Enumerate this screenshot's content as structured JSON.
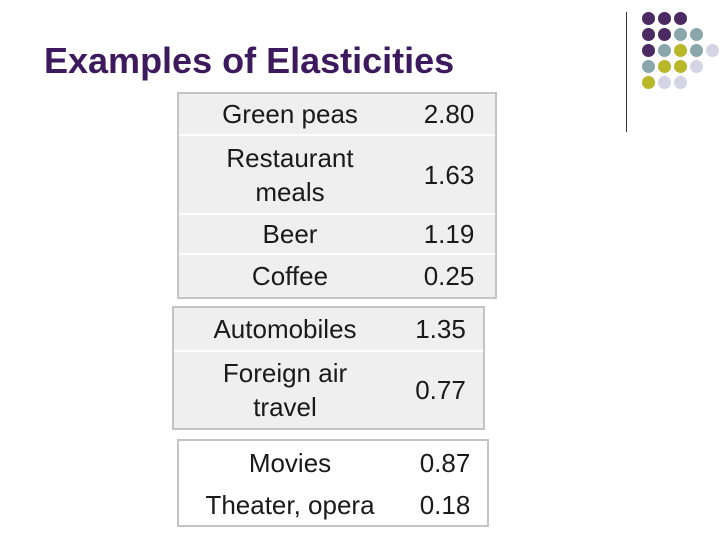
{
  "title": "Examples of Elasticities",
  "groups": [
    {
      "rows": [
        {
          "name": "Green peas",
          "value": "2.80"
        },
        {
          "name": "Restaurant meals",
          "value": "1.63"
        },
        {
          "name": "Beer",
          "value": "1.19"
        },
        {
          "name": "Coffee",
          "value": "0.25"
        }
      ]
    },
    {
      "rows": [
        {
          "name": "Automobiles",
          "value": "1.35"
        },
        {
          "name": "Foreign air travel",
          "value": "0.77"
        }
      ]
    },
    {
      "rows": [
        {
          "name": "Movies",
          "value": "0.87"
        },
        {
          "name": "Theater, opera",
          "value": "0.18"
        }
      ]
    }
  ],
  "colors": {
    "title": "#3d1a5e",
    "dot_purple": "#4b2a63",
    "dot_teal": "#8aa6ab",
    "dot_olive": "#b8b82a",
    "dot_lilac": "#d4d4e4"
  }
}
